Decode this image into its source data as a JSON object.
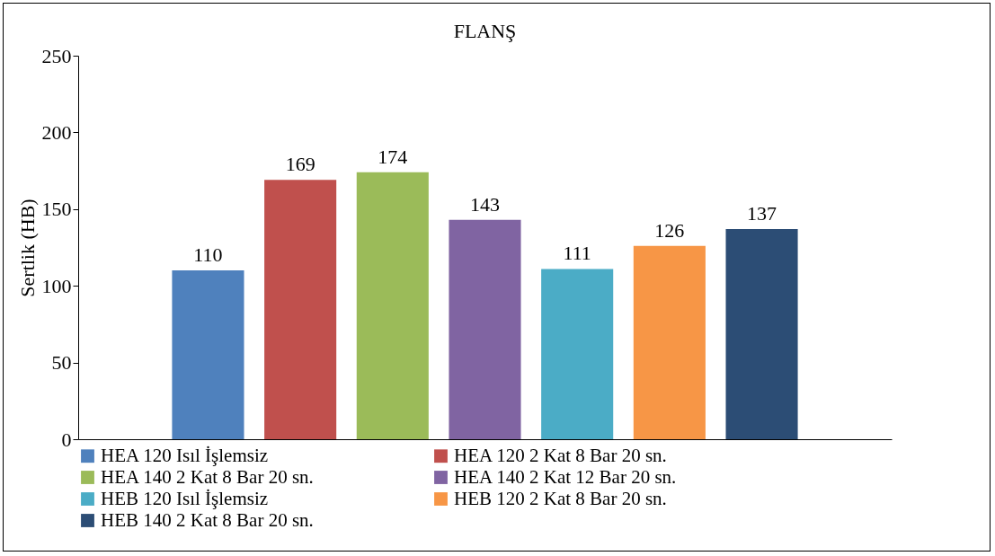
{
  "chart_data": {
    "type": "bar",
    "title": "FLANŞ",
    "ylabel": "Sertlik (HB)",
    "categories": [
      null
    ],
    "series": [
      {
        "name": "HEA 120 Isıl İşlemsiz",
        "color": "#4f81bd",
        "values": [
          110
        ]
      },
      {
        "name": "HEA 120 2 Kat 8 Bar 20 sn.",
        "color": "#c0504d",
        "values": [
          169
        ]
      },
      {
        "name": "HEA 140 2 Kat 8 Bar 20 sn.",
        "color": "#9bbb59",
        "values": [
          174
        ]
      },
      {
        "name": "HEA 140 2 Kat 12 Bar 20 sn.",
        "color": "#8064a2",
        "values": [
          143
        ]
      },
      {
        "name": "HEB 120 Isıl İşlemsiz",
        "color": "#4bacc6",
        "values": [
          111
        ]
      },
      {
        "name": "HEB 120 2 Kat 8 Bar 20 sn.",
        "color": "#f79646",
        "values": [
          126
        ]
      },
      {
        "name": "HEB 140 2 Kat 8 Bar 20 sn.",
        "color": "#2c4d75",
        "values": [
          137
        ]
      }
    ],
    "ylim": [
      0,
      250
    ],
    "yticks": [
      0,
      50,
      100,
      150,
      200,
      250
    ],
    "data_labels": true,
    "legend": "bottom",
    "grid": false,
    "tick_labels": "y"
  }
}
